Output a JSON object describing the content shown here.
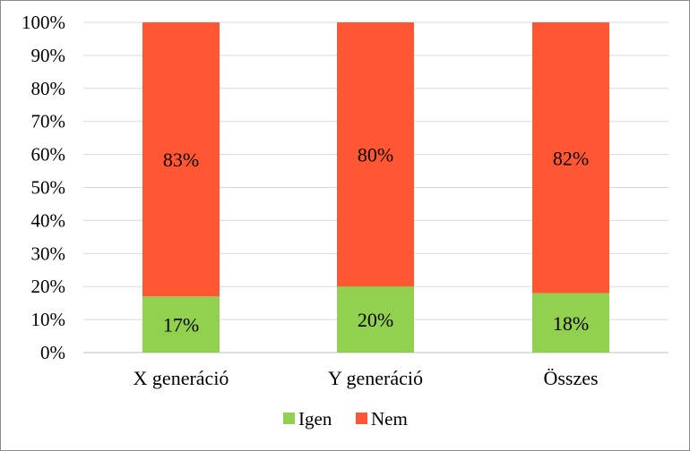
{
  "chart_data": {
    "type": "bar",
    "stacked": true,
    "categories": [
      "X generáció",
      "Y generáció",
      "Összes"
    ],
    "series": [
      {
        "name": "Igen",
        "values": [
          0.17,
          0.2,
          0.18
        ],
        "labels": [
          "17%",
          "20%",
          "18%"
        ],
        "color": "#92d050"
      },
      {
        "name": "Nem",
        "values": [
          0.83,
          0.8,
          0.82
        ],
        "labels": [
          "83%",
          "80%",
          "82%"
        ],
        "color": "#ff5733"
      }
    ],
    "ylim": [
      0,
      1
    ],
    "yticks": [
      "0%",
      "10%",
      "20%",
      "30%",
      "40%",
      "50%",
      "60%",
      "70%",
      "80%",
      "90%",
      "100%"
    ],
    "grid": true,
    "legend": "bottom",
    "title": "",
    "xlabel": "",
    "ylabel": ""
  }
}
